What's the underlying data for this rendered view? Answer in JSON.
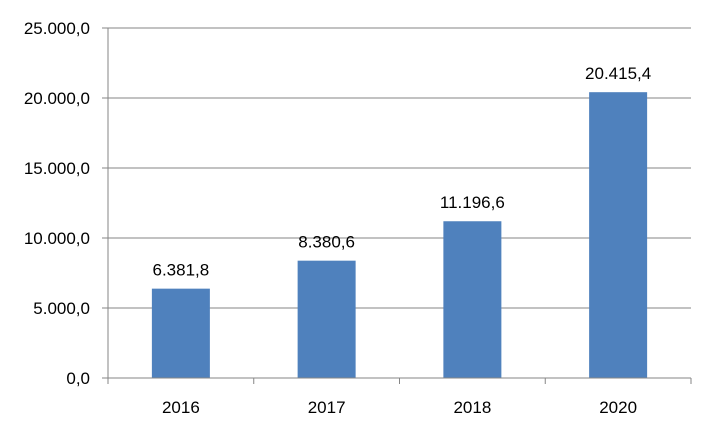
{
  "chart_data": {
    "type": "bar",
    "title": "",
    "xlabel": "",
    "ylabel": "",
    "categories": [
      "2016",
      "2017",
      "2018",
      "2020"
    ],
    "values": [
      6381.8,
      8380.6,
      11196.6,
      20415.4
    ],
    "value_labels": [
      "6.381,8",
      "8.380,6",
      "11.196,6",
      "20.415,4"
    ],
    "ylim": [
      0,
      25000
    ],
    "y_ticks": [
      0,
      5000,
      10000,
      15000,
      20000,
      25000
    ],
    "y_tick_labels": [
      "0,0",
      "5.000,0",
      "10.000,0",
      "15.000,0",
      "20.000,0",
      "25.000,0"
    ],
    "grid": true,
    "legend": "none",
    "bar_color": "#4F81BD"
  }
}
